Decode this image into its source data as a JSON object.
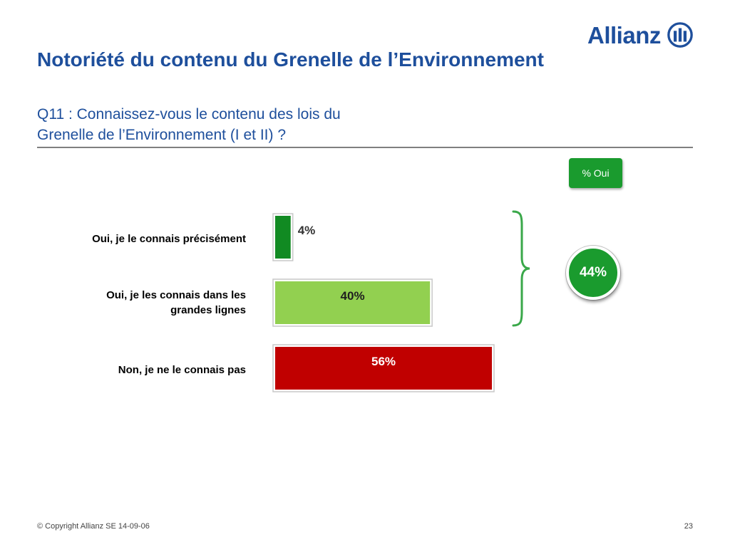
{
  "logo": {
    "text": "Allianz"
  },
  "page": {
    "title": "Notoriété du contenu du Grenelle de l’Environnement",
    "question_line1": "Q11 : Connaissez-vous le contenu des lois du",
    "question_line2": "Grenelle de l’Environnement (I et II) ?"
  },
  "badge": {
    "label": "% Oui"
  },
  "total": {
    "label": "44%",
    "value": 44
  },
  "colors": {
    "brand_blue": "#1e4f9c",
    "dark_green": "#118a22",
    "light_green": "#92d050",
    "red": "#c00000",
    "badge_green": "#1a9b2e"
  },
  "chart_data": {
    "type": "bar",
    "orientation": "horizontal",
    "categories": [
      "Oui, je le connais précisément",
      "Oui, je les connais dans les grandes lignes",
      "Non, je ne le connais pas"
    ],
    "category_lines": [
      [
        "Oui, je le connais précisément"
      ],
      [
        "Oui, je les connais dans les",
        "grandes lignes"
      ],
      [
        "Non, je ne le connais pas"
      ]
    ],
    "values": [
      4,
      40,
      56
    ],
    "value_labels": [
      "4%",
      "40%",
      "56%"
    ],
    "colors": [
      "#118a22",
      "#92d050",
      "#c00000"
    ],
    "xlim": [
      0,
      56
    ],
    "grid": false,
    "xlabel": "",
    "ylabel": ""
  },
  "footer": {
    "copyright": "© Copyright Allianz SE 14-09-06",
    "page_number": "23"
  }
}
